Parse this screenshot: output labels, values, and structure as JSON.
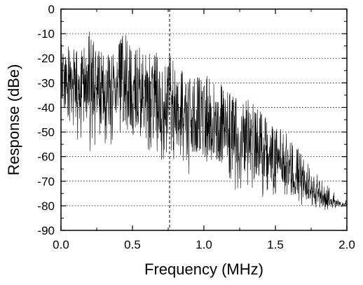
{
  "chart_data": {
    "type": "line",
    "title": "",
    "xlabel": "Frequency (MHz)",
    "ylabel": "Response (dBe)",
    "xlim": [
      0.0,
      2.0
    ],
    "ylim": [
      -90,
      0
    ],
    "xticks": [
      "0.0",
      "0.5",
      "1.0",
      "1.5",
      "2.0"
    ],
    "yticks": [
      "0",
      "-10",
      "-20",
      "-30",
      "-40",
      "-50",
      "-60",
      "-70",
      "-80",
      "-90"
    ],
    "gridlines_y": [
      -10,
      -20,
      -30,
      -40,
      -50,
      -60,
      -70,
      -80
    ],
    "grid": "horizontal dotted",
    "reference_line_x": 0.76,
    "series": [
      {
        "x": [
          0.0,
          0.05,
          0.1,
          0.15,
          0.2,
          0.25,
          0.3,
          0.35,
          0.4,
          0.45,
          0.5,
          0.55,
          0.6,
          0.65,
          0.7,
          0.75,
          0.8,
          0.85,
          0.9,
          0.95,
          1.0,
          1.05,
          1.1,
          1.15,
          1.2,
          1.25,
          1.3,
          1.35,
          1.4,
          1.45,
          1.5,
          1.55,
          1.6,
          1.65,
          1.7,
          1.75,
          1.8,
          1.85,
          1.9,
          1.95,
          2.0
        ],
        "upper": [
          -14,
          -17,
          -18,
          -20,
          -12,
          -19,
          -20,
          -22,
          -16,
          -12,
          -20,
          -18,
          -22,
          -19,
          -23,
          -18,
          -26,
          -28,
          -25,
          -31,
          -28,
          -32,
          -34,
          -33,
          -38,
          -40,
          -38,
          -42,
          -45,
          -47,
          -50,
          -52,
          -55,
          -58,
          -63,
          -68,
          -70,
          -74,
          -77,
          -78,
          -79
        ],
        "lower": [
          -50,
          -48,
          -52,
          -56,
          -58,
          -55,
          -55,
          -60,
          -55,
          -57,
          -60,
          -58,
          -60,
          -62,
          -65,
          -60,
          -64,
          -65,
          -68,
          -66,
          -70,
          -70,
          -72,
          -72,
          -74,
          -74,
          -74,
          -76,
          -77,
          -79,
          -80,
          -80,
          -82,
          -81,
          -81,
          -81,
          -81,
          -82,
          -81,
          -81,
          -80
        ]
      }
    ]
  }
}
